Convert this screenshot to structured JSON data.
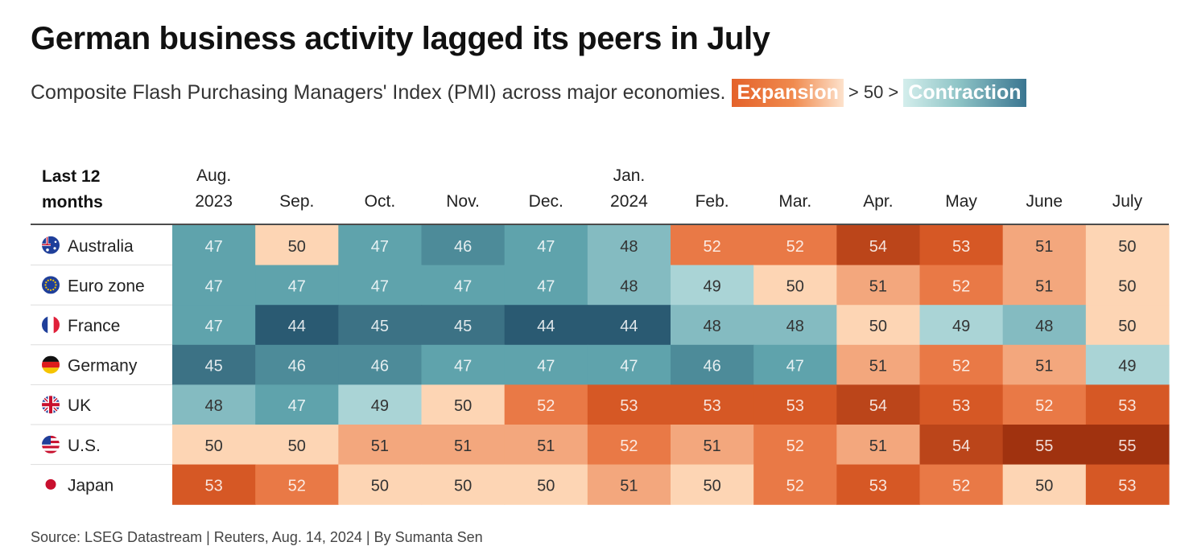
{
  "title": "German business activity lagged its peers in July",
  "subtitle": {
    "text": "Composite Flash Purchasing Managers' Index (PMI) across major economies.",
    "expansion_label": "Expansion",
    "middle": "> 50 >",
    "contraction_label": "Contraction"
  },
  "source": "Source: LSEG Datastream | Reuters, Aug. 14, 2024 | By Sumanta Sen",
  "chart_data": {
    "type": "heatmap",
    "row_header": [
      "Last 12",
      "months"
    ],
    "columns": [
      [
        "Aug.",
        "2023"
      ],
      [
        "Sep."
      ],
      [
        "Oct."
      ],
      [
        "Nov."
      ],
      [
        "Dec."
      ],
      [
        "Jan.",
        "2024"
      ],
      [
        "Feb."
      ],
      [
        "Mar."
      ],
      [
        "Apr."
      ],
      [
        "May"
      ],
      [
        "June"
      ],
      [
        "July"
      ]
    ],
    "rows": [
      {
        "name": "Australia",
        "flag": "australia-flag-icon",
        "values": [
          47,
          50,
          47,
          46,
          47,
          48,
          52,
          52,
          54,
          53,
          51,
          50
        ]
      },
      {
        "name": "Euro zone",
        "flag": "eu-flag-icon",
        "values": [
          47,
          47,
          47,
          47,
          47,
          48,
          49,
          50,
          51,
          52,
          51,
          50
        ]
      },
      {
        "name": "France",
        "flag": "france-flag-icon",
        "values": [
          47,
          44,
          45,
          45,
          44,
          44,
          48,
          48,
          50,
          49,
          48,
          50
        ]
      },
      {
        "name": "Germany",
        "flag": "germany-flag-icon",
        "values": [
          45,
          46,
          46,
          47,
          47,
          47,
          46,
          47,
          51,
          52,
          51,
          49
        ]
      },
      {
        "name": "UK",
        "flag": "uk-flag-icon",
        "values": [
          48,
          47,
          49,
          50,
          52,
          53,
          53,
          53,
          54,
          53,
          52,
          53
        ]
      },
      {
        "name": "U.S.",
        "flag": "us-flag-icon",
        "values": [
          50,
          50,
          51,
          51,
          51,
          52,
          51,
          52,
          51,
          54,
          55,
          55
        ]
      },
      {
        "name": "Japan",
        "flag": "japan-flag-icon",
        "values": [
          53,
          52,
          50,
          50,
          50,
          51,
          50,
          52,
          53,
          52,
          50,
          53
        ]
      }
    ],
    "threshold": 50,
    "colors": {
      "expansion_strong": "#a0320f",
      "expansion": "#e4622a",
      "expansion_light": "#fdd5b4",
      "contraction_light": "#cfeceb",
      "contraction": "#5fa3ac",
      "contraction_strong": "#2a5a72"
    }
  }
}
